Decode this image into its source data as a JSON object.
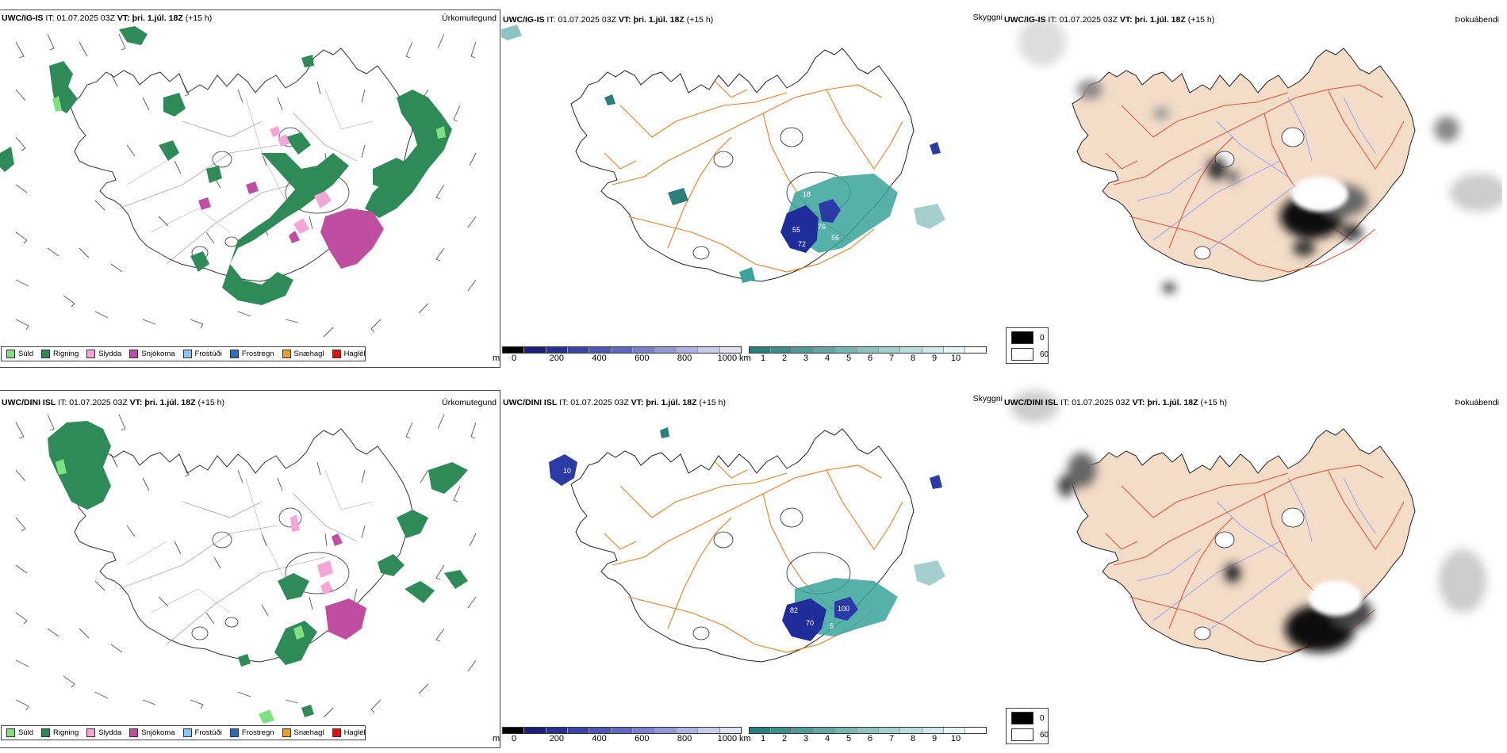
{
  "colors": {
    "land_fill": "#f3dcc8",
    "coast": "#222222",
    "roads_orange": "#e67e22",
    "roads_red": "#e05a3a",
    "rivers": "#8ea2f0",
    "rain": "#2e8b57",
    "drizzle": "#7fe07f",
    "sleet": "#f4a6d6",
    "snow": "#c04ea0",
    "cloud_teal": "#3aa39c",
    "cloud_blue": "#1f2d9b"
  },
  "rows": [
    {
      "model": "UWC/IG-IS",
      "it_label": "IT:",
      "it_value": "01.07.2025 03Z",
      "vt_label": "VT:",
      "vt_value": "þri. 1.júl. 18Z",
      "lead": "(+15 h)",
      "fields": [
        "Úrkomutegund",
        "Skyggni",
        "Þokuábendi"
      ]
    },
    {
      "model": "UWC/DINI ISL",
      "it_label": "IT:",
      "it_value": "01.07.2025 03Z",
      "vt_label": "VT:",
      "vt_value": "þri. 1.júl. 18Z",
      "lead": "(+15 h)",
      "fields": [
        "Úrkomutegund",
        "Skyggni",
        "Þokuábendi"
      ]
    }
  ],
  "precip_legend": [
    {
      "label": "Súld",
      "color": "#7fe07f"
    },
    {
      "label": "Rigning",
      "color": "#2e8b57"
    },
    {
      "label": "Slydda",
      "color": "#f4a6d6"
    },
    {
      "label": "Snjókoma",
      "color": "#c04ea0"
    },
    {
      "label": "Frostúði",
      "color": "#8ec3f2"
    },
    {
      "label": "Frostregn",
      "color": "#2b6cc4"
    },
    {
      "label": "Snæhagl",
      "color": "#f0a020"
    },
    {
      "label": "Haglél",
      "color": "#e01010"
    }
  ],
  "cloud_base_scale": {
    "unit": "m",
    "ticks": [
      "0",
      "200",
      "400",
      "600",
      "800",
      "1000"
    ],
    "colors": [
      "#000000",
      "#1b1f7a",
      "#27308f",
      "#3a44a6",
      "#4d57b5",
      "#6068c2",
      "#7a80cc",
      "#9499d6",
      "#aeb2e0",
      "#c8cbea",
      "#dfe1f3"
    ]
  },
  "visibility_scale": {
    "unit": "km",
    "ticks": [
      "1",
      "2",
      "3",
      "4",
      "5",
      "6",
      "7",
      "8",
      "9",
      "10"
    ],
    "colors": [
      "#2a7f7a",
      "#3c8d88",
      "#4f9b96",
      "#63a8a4",
      "#78b6b2",
      "#8dc3c0",
      "#a3d0cd",
      "#b9dddb",
      "#cfeae8",
      "#e6f4f3",
      "#ffffff"
    ]
  },
  "fog_legend": [
    {
      "value": "0",
      "color": "#000000"
    },
    {
      "value": "60",
      "color": "#ffffff"
    }
  ],
  "row1_cloud_labels": [
    "18",
    "55",
    "76",
    "56",
    "72"
  ],
  "row2_cloud_labels": [
    "10",
    "82",
    "100",
    "70",
    "5"
  ]
}
